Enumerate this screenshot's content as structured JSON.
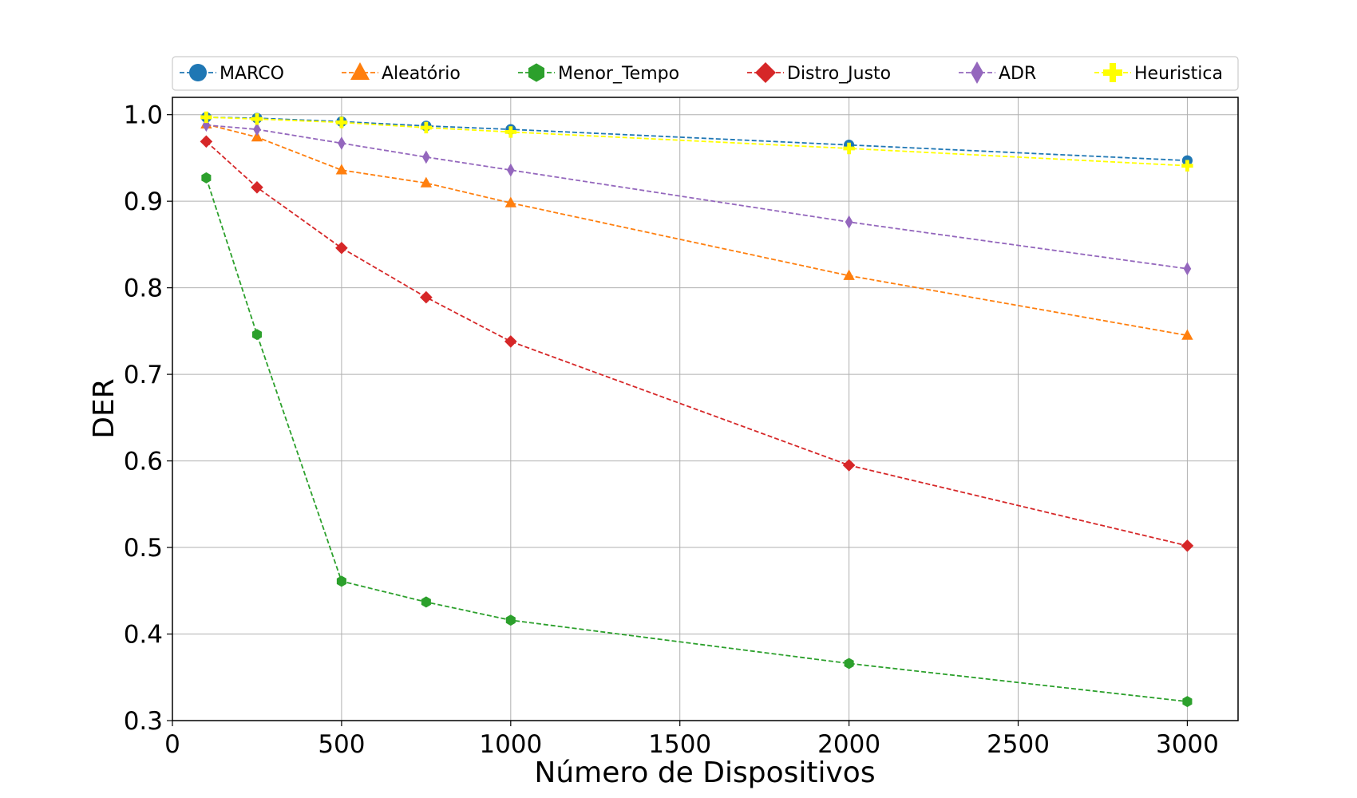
{
  "chart_data": {
    "type": "line",
    "title": "",
    "xlabel": "Número de Dispositivos",
    "ylabel": "DER",
    "xlim": [
      0,
      3150
    ],
    "ylim": [
      0.3,
      1.02
    ],
    "xticks": [
      0,
      500,
      1000,
      1500,
      2000,
      2500,
      3000
    ],
    "yticks": [
      0.3,
      0.4,
      0.5,
      0.6,
      0.7,
      0.8,
      0.9,
      1.0
    ],
    "xtick_labels": [
      "0",
      "500",
      "1000",
      "1500",
      "2000",
      "2500",
      "3000"
    ],
    "ytick_labels": [
      "0.3",
      "0.4",
      "0.5",
      "0.6",
      "0.7",
      "0.8",
      "0.9",
      "1.0"
    ],
    "grid": true,
    "legend_position": "top",
    "x": [
      100,
      250,
      500,
      750,
      1000,
      2000,
      3000
    ],
    "series": [
      {
        "name": "MARCO",
        "color": "#1f77b4",
        "marker": "circle",
        "values": [
          0.997,
          0.996,
          0.992,
          0.987,
          0.983,
          0.965,
          0.947
        ]
      },
      {
        "name": "Aleatório",
        "color": "#ff7f0e",
        "marker": "triangle",
        "values": [
          0.989,
          0.974,
          0.936,
          0.921,
          0.898,
          0.814,
          0.745
        ]
      },
      {
        "name": "Menor_Tempo",
        "color": "#2ca02c",
        "marker": "hexagon",
        "values": [
          0.927,
          0.746,
          0.461,
          0.437,
          0.416,
          0.366,
          0.322
        ]
      },
      {
        "name": "Distro_Justo",
        "color": "#d62728",
        "marker": "diamond",
        "values": [
          0.969,
          0.916,
          0.846,
          0.789,
          0.738,
          0.595,
          0.502
        ]
      },
      {
        "name": "ADR",
        "color": "#9467bd",
        "marker": "thin-diamond",
        "values": [
          0.988,
          0.983,
          0.967,
          0.951,
          0.936,
          0.876,
          0.822
        ]
      },
      {
        "name": "Heuristica",
        "color": "#ffff00",
        "marker": "plus",
        "values": [
          0.997,
          0.995,
          0.991,
          0.985,
          0.98,
          0.961,
          0.941
        ]
      }
    ]
  }
}
